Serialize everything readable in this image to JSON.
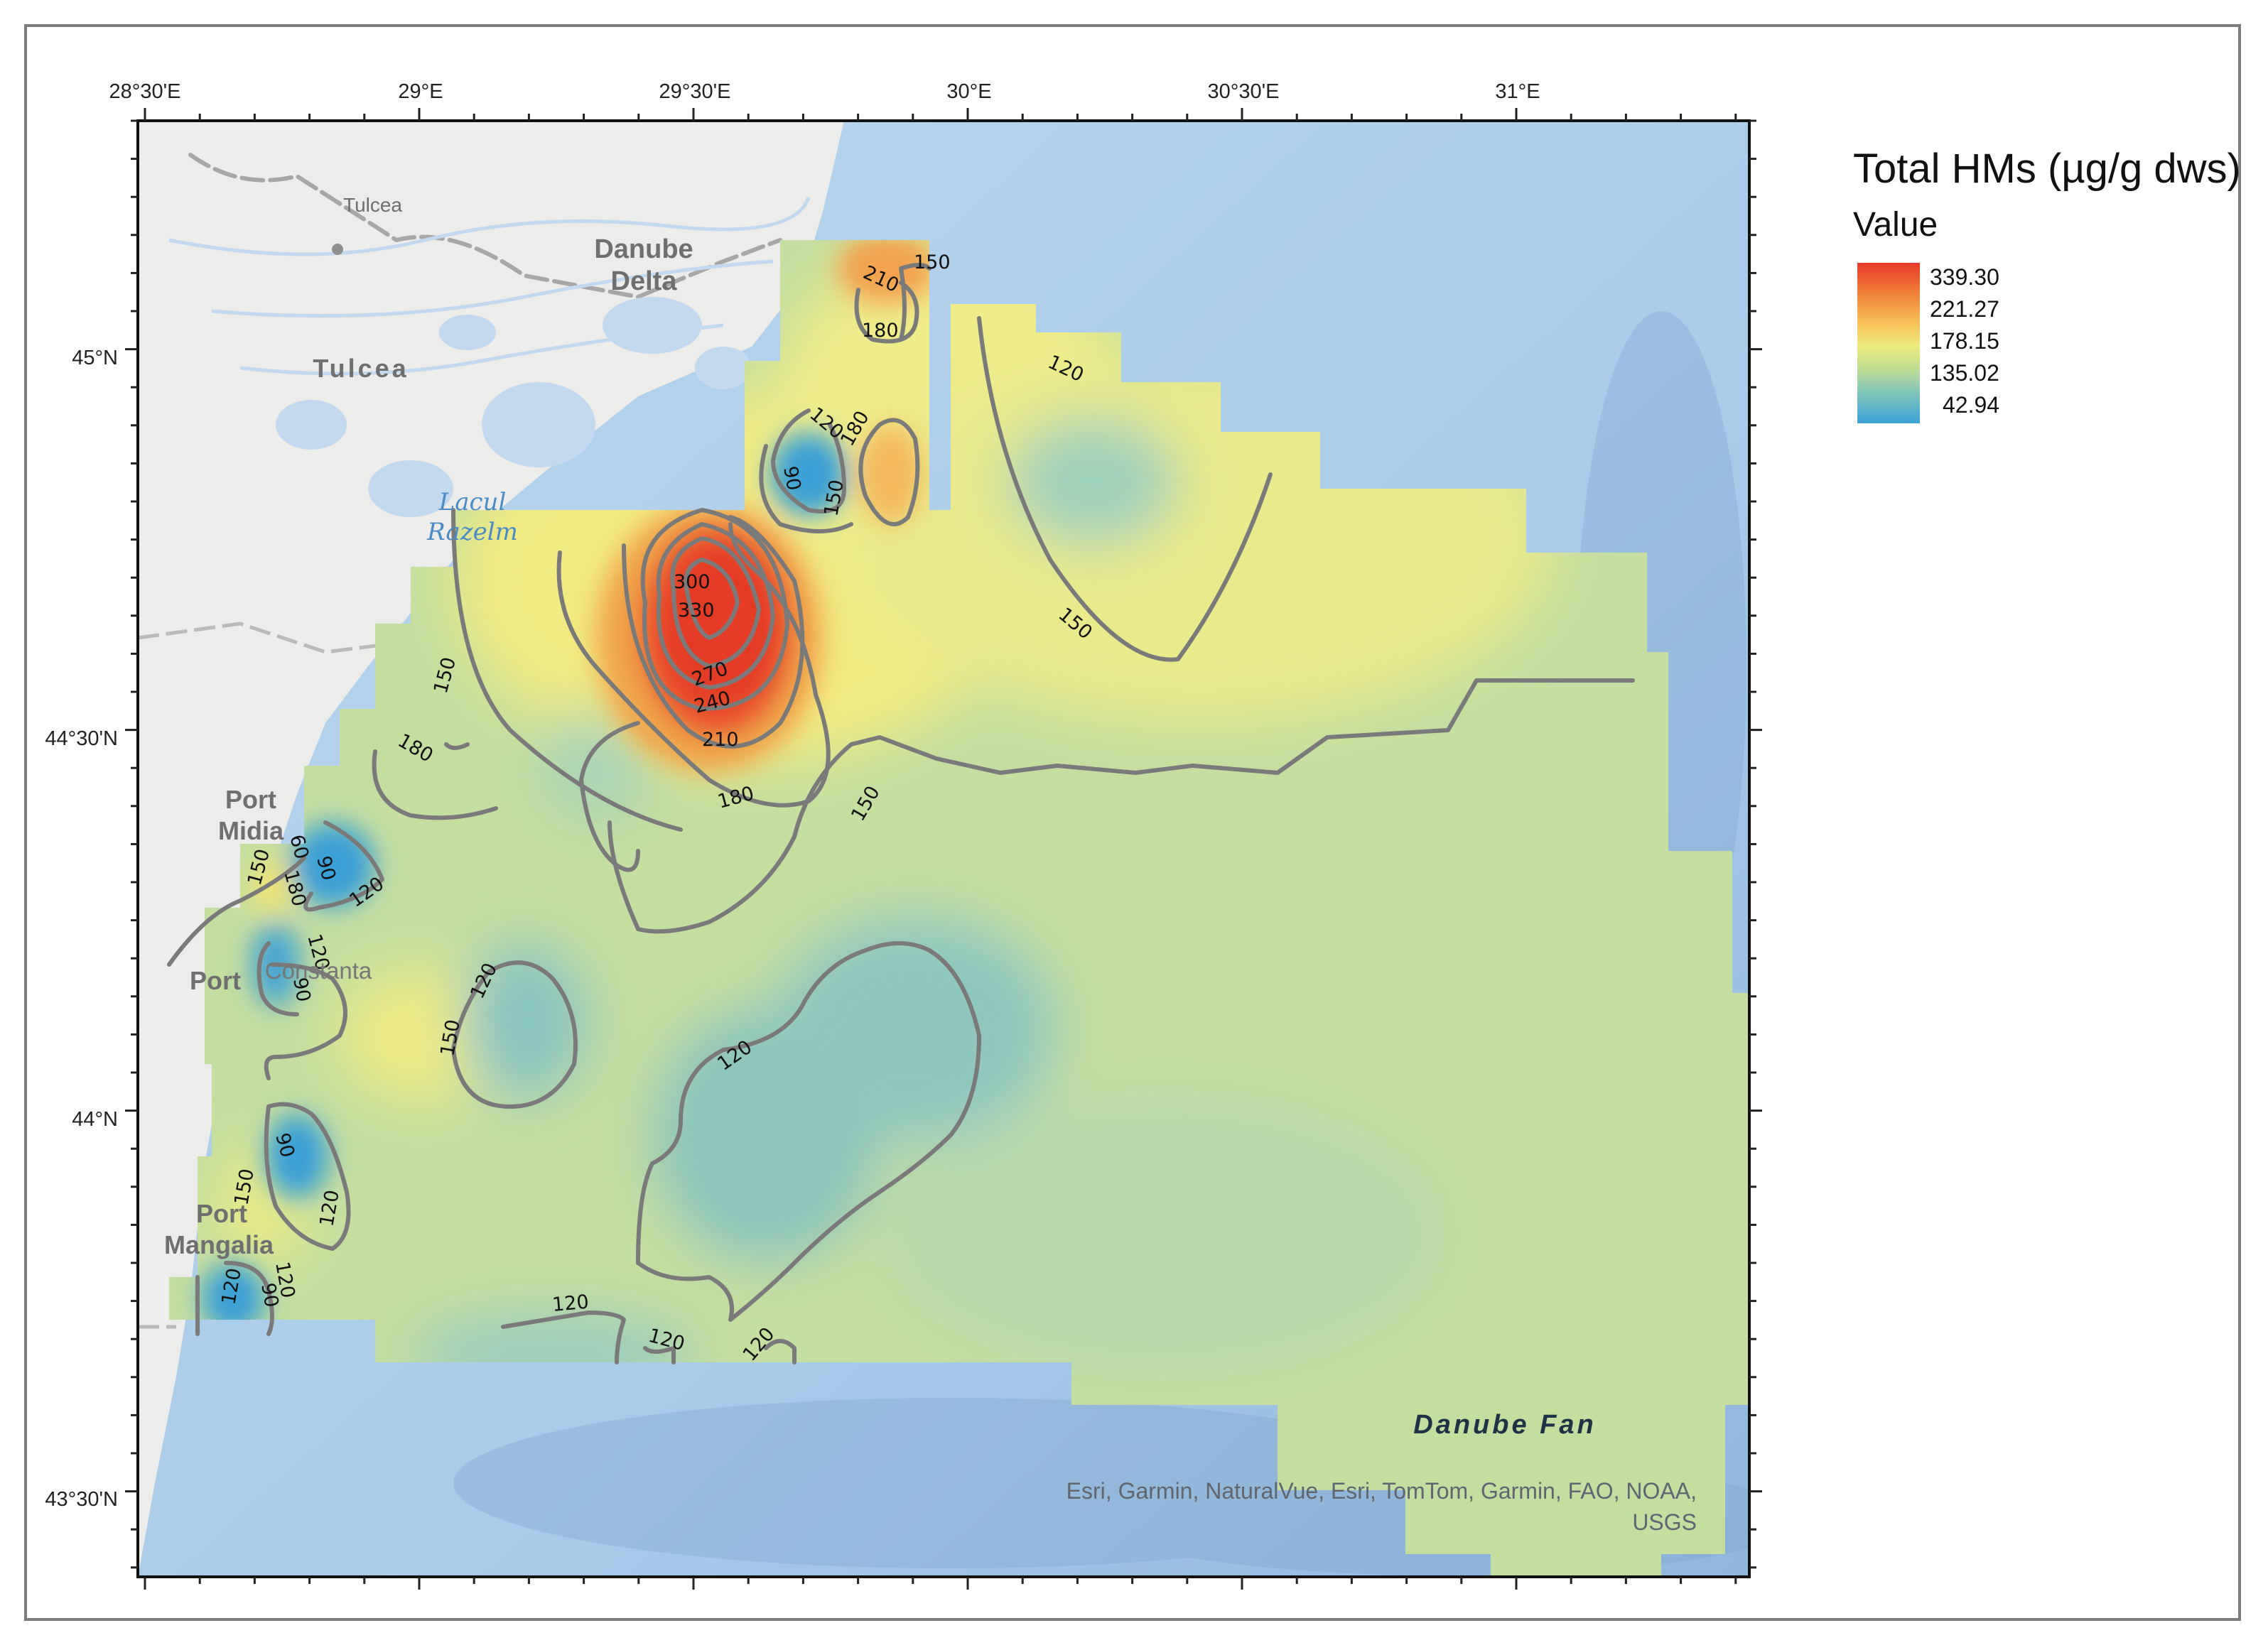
{
  "legend": {
    "title": "Total HMs (µg/g dws)",
    "subtitle": "Value",
    "values": [
      "339.30",
      "221.27",
      "178.15",
      "135.02",
      "42.94"
    ],
    "colors": [
      "#e63a2a",
      "#f6c257",
      "#eeeb7e",
      "#bfdc93",
      "#3aa2d8"
    ]
  },
  "axes": {
    "top": [
      "28°30'E",
      "29°E",
      "29°30'E",
      "30°E",
      "30°30'E",
      "31°E"
    ],
    "left": [
      "45°N",
      "44°30'N",
      "44°N",
      "43°30'N"
    ]
  },
  "places": {
    "tulcea_city": "Tulcea",
    "danube_delta_1": "Danube",
    "danube_delta_2": "Delta",
    "tulcea_county": "Tulcea",
    "lacul_1": "Lacul",
    "lacul_2": "Razelm",
    "port_midia_1": "Port",
    "port_midia_2": "Midia",
    "port_constanta_1": "Port",
    "port_constanta_2": "Constanta",
    "port_mangalia_1": "Port",
    "port_mangalia_2": "Mangalia",
    "danube_fan": "Danube Fan"
  },
  "contour_labels": [
    "330",
    "300",
    "270",
    "240",
    "210",
    "180",
    "150",
    "120",
    "90",
    "60"
  ],
  "contour_label_items": [
    {
      "text": "210"
    },
    {
      "text": "150"
    },
    {
      "text": "180"
    },
    {
      "text": "120"
    },
    {
      "text": "120"
    },
    {
      "text": "180"
    },
    {
      "text": "90"
    },
    {
      "text": "150"
    },
    {
      "text": "300"
    },
    {
      "text": "330"
    },
    {
      "text": "270"
    },
    {
      "text": "240"
    },
    {
      "text": "210"
    },
    {
      "text": "180"
    },
    {
      "text": "150"
    },
    {
      "text": "150"
    },
    {
      "text": "150"
    },
    {
      "text": "180"
    },
    {
      "text": "90"
    },
    {
      "text": "60"
    },
    {
      "text": "180"
    },
    {
      "text": "150"
    },
    {
      "text": "120"
    },
    {
      "text": "120"
    },
    {
      "text": "90"
    },
    {
      "text": "120"
    },
    {
      "text": "150"
    },
    {
      "text": "120"
    },
    {
      "text": "90"
    },
    {
      "text": "150"
    },
    {
      "text": "120"
    },
    {
      "text": "120"
    },
    {
      "text": "90"
    },
    {
      "text": "120"
    },
    {
      "text": "120"
    },
    {
      "text": "120"
    },
    {
      "text": "120"
    }
  ],
  "attribution": {
    "line1": "Esri, Garmin, NaturalVue, Esri, TomTom, Garmin, FAO, NOAA,",
    "line2": "USGS"
  }
}
